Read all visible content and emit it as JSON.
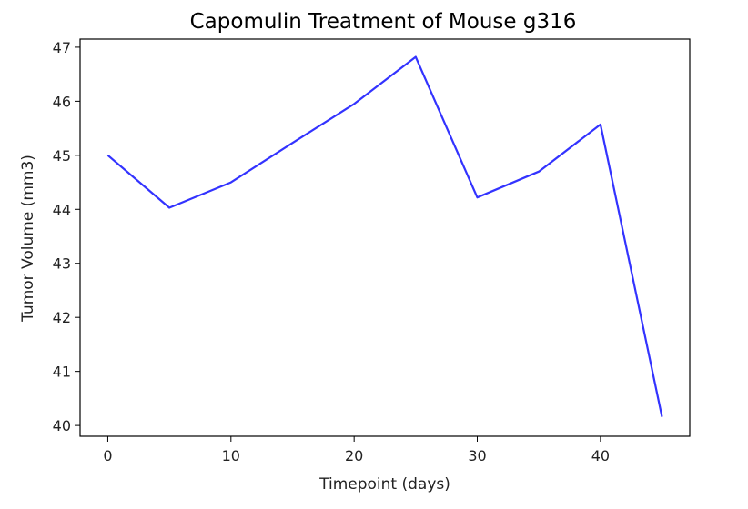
{
  "chart_data": {
    "type": "line",
    "title": "Capomulin Treatment of Mouse g316",
    "xlabel": "Timepoint (days)",
    "ylabel": "Tumor Volume (mm3)",
    "xlim": [
      -2.25,
      47.25
    ],
    "ylim": [
      39.8,
      47.15
    ],
    "xticks": [
      0,
      10,
      20,
      30,
      40
    ],
    "yticks": [
      40,
      41,
      42,
      43,
      44,
      45,
      46,
      47
    ],
    "grid": false,
    "series": [
      {
        "color": "#3333ff",
        "x": [
          0,
          5,
          10,
          15,
          20,
          25,
          30,
          35,
          40,
          45
        ],
        "values": [
          45.0,
          44.03,
          44.5,
          45.23,
          45.95,
          46.82,
          44.22,
          44.7,
          45.57,
          40.16
        ]
      }
    ]
  }
}
